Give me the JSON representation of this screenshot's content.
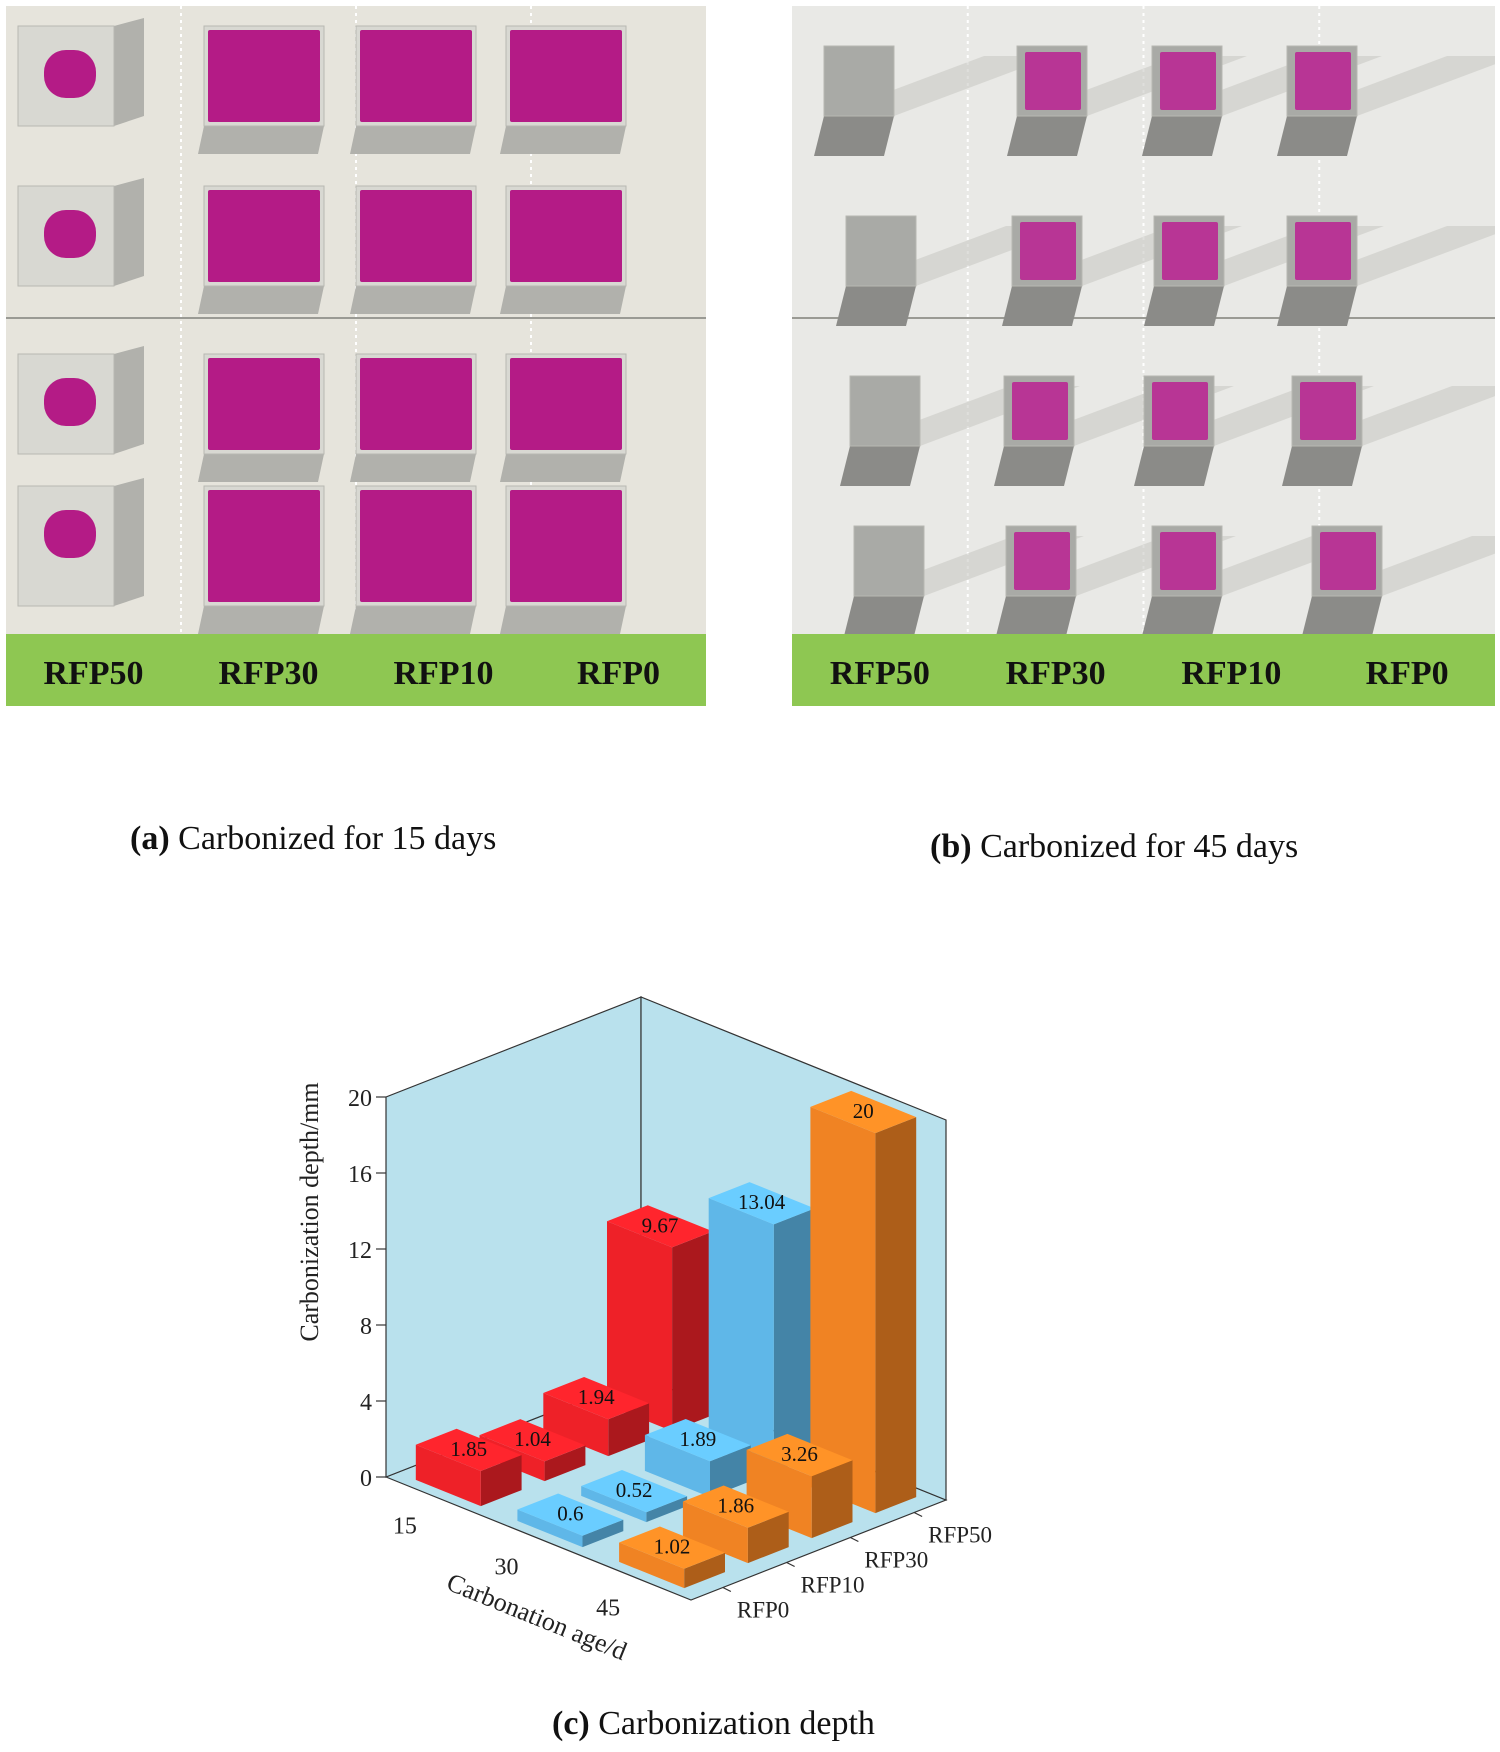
{
  "panel_a": {
    "caption_tag": "(a)",
    "caption_text": " Carbonized for 15 days",
    "labels": [
      "RFP50",
      "RFP30",
      "RFP10",
      "RFP0"
    ],
    "colors": {
      "band": "#8ec752",
      "pink": "#b41b86",
      "concrete": "#d8d8d2",
      "bg": "#e6e4dc"
    }
  },
  "panel_b": {
    "caption_tag": "(b)",
    "caption_text": " Carbonized for 45 days",
    "labels": [
      "RFP50",
      "RFP30",
      "RFP10",
      "RFP0"
    ],
    "colors": {
      "band": "#8ec752",
      "pink": "#b83595",
      "concrete": "#a9aaa6",
      "bg": "#e9e9e6"
    }
  },
  "panel_c": {
    "caption_tag": "(c)",
    "caption_text": " Carbonization depth"
  },
  "chart_data": {
    "type": "bar3d",
    "zlabel": "Carbonization depth/mm",
    "xlabel": "Carbonation age/d",
    "zlim": [
      0,
      20
    ],
    "z_ticks": [
      "0",
      "4",
      "8",
      "12",
      "16",
      "20"
    ],
    "x_ticks": [
      "15",
      "30",
      "45"
    ],
    "y_ticks": [
      "RFP0",
      "RFP10",
      "RFP30",
      "RFP50"
    ],
    "series": [
      {
        "name": "15",
        "color": "#ee2128",
        "values": [
          1.85,
          1.04,
          1.94,
          9.67
        ],
        "labels": [
          "1.85",
          "1.04",
          "1.94",
          "9.67"
        ]
      },
      {
        "name": "30",
        "color": "#5fb7e8",
        "values": [
          0.6,
          0.52,
          1.89,
          13.04
        ],
        "labels": [
          "0.6",
          "0.52",
          "1.89",
          "13.04"
        ]
      },
      {
        "name": "45",
        "color": "#f08323",
        "values": [
          1.02,
          1.86,
          3.26,
          20
        ],
        "labels": [
          "1.02",
          "1.86",
          "3.26",
          "20"
        ]
      }
    ]
  }
}
